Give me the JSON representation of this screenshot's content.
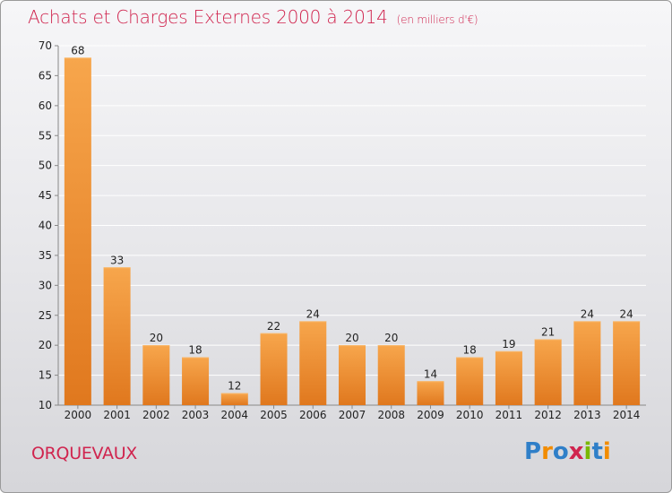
{
  "title": "Achats et Charges Externes 2000 à 2014",
  "unit_note": "(en milliers d'€)",
  "commune": "ORQUEVAUX",
  "logo": {
    "text": "Proxiti",
    "letters": [
      "P",
      "r",
      "o",
      "x",
      "i",
      "t",
      "i"
    ],
    "colors": [
      "#2f7fc8",
      "#f28c00",
      "#2f7fc8",
      "#d0244e",
      "#7ab800",
      "#2f7fc8",
      "#f28c00"
    ]
  },
  "colors": {
    "bar": "#f0983a",
    "bar_dark": "#e07e20",
    "title": "#d0244e"
  },
  "chart_data": {
    "type": "bar",
    "title": "Achats et Charges Externes 2000 à 2014",
    "categories": [
      "2000",
      "2001",
      "2002",
      "2003",
      "2004",
      "2005",
      "2006",
      "2007",
      "2008",
      "2009",
      "2010",
      "2011",
      "2012",
      "2013",
      "2014"
    ],
    "values": [
      68,
      33,
      20,
      18,
      12,
      22,
      24,
      20,
      20,
      14,
      18,
      19,
      21,
      24,
      24
    ],
    "ylim": [
      10,
      70
    ],
    "yticks": [
      10,
      15,
      20,
      25,
      30,
      35,
      40,
      45,
      50,
      55,
      60,
      65,
      70
    ],
    "grid": true,
    "xlabel": "",
    "ylabel": ""
  }
}
